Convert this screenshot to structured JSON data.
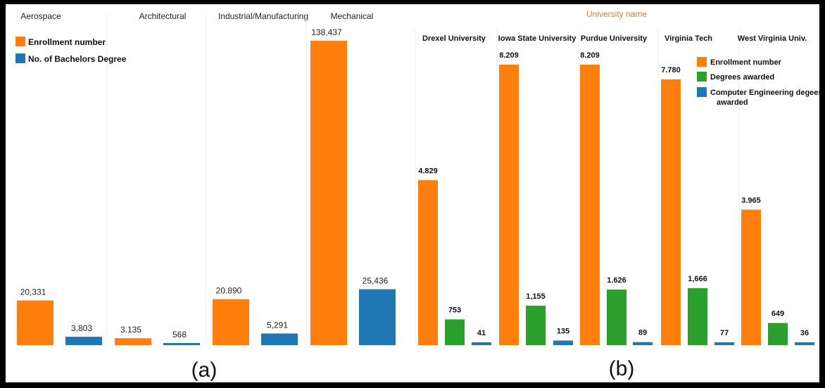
{
  "colors": {
    "orange": "#ff7f0e",
    "blue": "#1f77b4",
    "green": "#2ca02c",
    "header_b": "#c8804a"
  },
  "panel_a_label": "(a)",
  "panel_b_label": "(b)",
  "chart_data": [
    {
      "type": "bar",
      "panel": "(a)",
      "categories": [
        "Aerospace",
        "Architectural",
        "Industrial/Manufacturing",
        "Mechanical"
      ],
      "series": [
        {
          "name": "Enrollment number",
          "color": "#ff7f0e",
          "values": [
            20331,
            3135,
            20890,
            138437
          ],
          "labels": [
            "20,331",
            "3.135",
            "20.890",
            "138,437"
          ]
        },
        {
          "name": "No. of Bachelors Degree",
          "color": "#1f77b4",
          "values": [
            3803,
            568,
            5291,
            25436
          ],
          "labels": [
            "3,803",
            "568",
            "5,291",
            "25,436"
          ]
        }
      ],
      "ylim": [
        0,
        140000
      ],
      "legend_position": "top-left"
    },
    {
      "type": "bar",
      "panel": "(b)",
      "header": "University name",
      "categories": [
        "Drexel University",
        "Iowa State University",
        "Purdue University",
        "Virginia Tech",
        "West Virginia Univ."
      ],
      "series": [
        {
          "name": "Enrollment number",
          "color": "#ff7f0e",
          "values": [
            4829,
            8209,
            8209,
            7780,
            3965
          ],
          "labels": [
            "4.829",
            "8.209",
            "8.209",
            "7.780",
            "3.965"
          ]
        },
        {
          "name": "Degrees awarded",
          "color": "#2ca02c",
          "values": [
            753,
            1155,
            1626,
            1666,
            649
          ],
          "labels": [
            "753",
            "1,155",
            "1.626",
            "1,666",
            "649"
          ]
        },
        {
          "name": "Computer Engineering degees awarded",
          "color": "#1f77b4",
          "values": [
            41,
            135,
            89,
            77,
            36
          ],
          "labels": [
            "41",
            "135",
            "89",
            "77",
            "36"
          ]
        }
      ],
      "ylim": [
        0,
        8500
      ],
      "legend_position": "top-right"
    }
  ]
}
